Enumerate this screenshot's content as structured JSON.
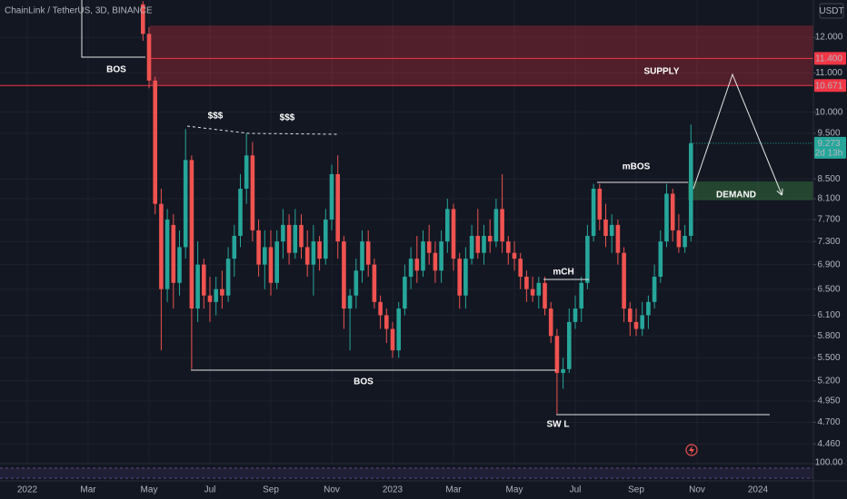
{
  "chart_data": {
    "type": "candlestick",
    "title": "ChainLink / TetherUS, 3D, BINANCE",
    "currency": "USDT",
    "countdown": "2d 13h",
    "indicator_label": "100.00",
    "log_scale": true,
    "grid": true,
    "up_color": "#26a69a",
    "down_color": "#ef5350",
    "ylim": [
      4.26,
      13.14
    ],
    "yticks": [
      {
        "value": 12,
        "label": "12.000"
      },
      {
        "value": 11,
        "label": "11.000"
      },
      {
        "value": 10,
        "label": "10.000"
      },
      {
        "value": 9.5,
        "label": "9.500"
      },
      {
        "value": 8.5,
        "label": "8.500"
      },
      {
        "value": 8.1,
        "label": "8.100"
      },
      {
        "value": 7.7,
        "label": "7.700"
      },
      {
        "value": 7.3,
        "label": "7.300"
      },
      {
        "value": 6.9,
        "label": "6.900"
      },
      {
        "value": 6.5,
        "label": "6.500"
      },
      {
        "value": 6.1,
        "label": "6.100"
      },
      {
        "value": 5.8,
        "label": "5.800"
      },
      {
        "value": 5.5,
        "label": "5.500"
      },
      {
        "value": 5.2,
        "label": "5.200"
      },
      {
        "value": 4.95,
        "label": "4.950"
      },
      {
        "value": 4.7,
        "label": "4.700"
      },
      {
        "value": 4.46,
        "label": "4.460"
      }
    ],
    "categories": [
      "2022",
      null,
      null,
      null,
      null,
      null,
      null,
      null,
      null,
      null,
      "Mar",
      null,
      null,
      null,
      null,
      null,
      null,
      null,
      null,
      null,
      "May",
      null,
      null,
      null,
      null,
      null,
      null,
      null,
      null,
      null,
      "Jul",
      null,
      null,
      null,
      null,
      null,
      null,
      null,
      null,
      null,
      "Sep",
      null,
      null,
      null,
      null,
      null,
      null,
      null,
      null,
      null,
      "Nov",
      null,
      null,
      null,
      null,
      null,
      null,
      null,
      null,
      null,
      "2023",
      null,
      null,
      null,
      null,
      null,
      null,
      null,
      null,
      null,
      "Mar",
      null,
      null,
      null,
      null,
      null,
      null,
      null,
      null,
      null,
      "May",
      null,
      null,
      null,
      null,
      null,
      null,
      null,
      null,
      null,
      "Jul",
      null,
      null,
      null,
      null,
      null,
      null,
      null,
      null,
      null,
      "Sep",
      null,
      null,
      null,
      null,
      null,
      null,
      null,
      null,
      null,
      "Nov",
      null,
      null,
      null,
      null,
      null,
      null,
      null,
      null,
      null,
      "2024"
    ],
    "open": [
      null,
      null,
      null,
      null,
      null,
      null,
      null,
      null,
      null,
      null,
      null,
      null,
      null,
      null,
      null,
      null,
      null,
      null,
      null,
      13.0,
      12.1,
      10.8,
      8.0,
      6.5,
      7.6,
      6.6,
      7.2,
      8.9,
      6.2,
      6.9,
      6.4,
      6.3,
      6.5,
      6.4,
      7.0,
      7.4,
      8.3,
      9.0,
      7.5,
      6.9,
      7.2,
      6.6,
      7.3,
      7.6,
      7.1,
      7.6,
      7.2,
      6.9,
      7.3,
      7.0,
      7.7,
      8.6,
      7.3,
      6.2,
      6.4,
      6.8,
      7.3,
      6.9,
      6.3,
      6.1,
      5.9,
      5.6,
      6.2,
      6.7,
      7.0,
      6.8,
      7.3,
      7.1,
      6.8,
      7.3,
      7.9,
      7.0,
      6.4,
      7.0,
      7.4,
      7.1,
      7.4,
      7.3,
      7.9,
      7.3,
      7.1,
      7.0,
      6.7,
      6.5,
      6.4,
      6.6,
      6.2,
      5.8,
      5.3,
      5.35,
      6.0,
      6.2,
      6.6,
      7.4,
      8.3,
      7.7,
      7.4,
      7.6,
      7.1,
      6.2,
      6.0,
      5.9,
      6.1,
      6.3,
      6.7,
      7.3,
      8.2,
      7.5,
      7.2,
      7.4,
      null,
      null,
      null,
      null,
      null,
      null,
      null,
      null,
      null,
      null,
      null
    ],
    "high": [
      null,
      null,
      null,
      null,
      null,
      null,
      null,
      null,
      null,
      null,
      null,
      null,
      null,
      null,
      null,
      null,
      null,
      null,
      null,
      13.1,
      12.3,
      10.9,
      8.3,
      7.9,
      7.8,
      7.5,
      9.6,
      9.0,
      7.3,
      7.0,
      6.7,
      6.7,
      6.8,
      7.2,
      7.6,
      8.6,
      9.5,
      9.3,
      7.7,
      7.5,
      7.5,
      7.5,
      7.9,
      7.8,
      7.9,
      7.8,
      7.5,
      7.6,
      7.4,
      7.9,
      8.8,
      9.0,
      7.4,
      6.5,
      7.0,
      7.5,
      7.5,
      7.0,
      6.4,
      6.2,
      6.0,
      6.3,
      6.9,
      7.2,
      7.4,
      7.5,
      7.6,
      7.3,
      7.5,
      8.1,
      8.0,
      7.1,
      7.2,
      7.6,
      7.9,
      7.6,
      7.7,
      8.1,
      8.6,
      7.4,
      7.3,
      7.1,
      6.8,
      6.7,
      6.7,
      6.7,
      6.3,
      5.9,
      5.5,
      6.2,
      6.4,
      6.7,
      7.6,
      8.4,
      8.4,
      8.0,
      7.8,
      7.7,
      7.2,
      6.3,
      6.2,
      6.3,
      6.4,
      6.9,
      7.5,
      8.4,
      8.3,
      7.8,
      7.6,
      9.7,
      null,
      null,
      null,
      null,
      null,
      null,
      null,
      null,
      null,
      null,
      null
    ],
    "low": [
      null,
      null,
      null,
      null,
      null,
      null,
      null,
      null,
      null,
      null,
      null,
      null,
      null,
      null,
      null,
      null,
      null,
      null,
      null,
      11.9,
      10.6,
      7.8,
      5.6,
      6.3,
      6.2,
      6.4,
      7.0,
      5.35,
      6.0,
      6.2,
      6.0,
      6.1,
      6.2,
      6.3,
      6.7,
      7.2,
      8.0,
      7.3,
      6.7,
      6.5,
      6.4,
      6.5,
      7.0,
      6.9,
      7.0,
      7.0,
      6.7,
      6.4,
      6.8,
      6.9,
      7.5,
      7.0,
      5.9,
      5.6,
      6.2,
      6.6,
      6.7,
      6.2,
      5.9,
      5.7,
      5.5,
      5.5,
      6.1,
      6.5,
      6.6,
      6.7,
      6.9,
      6.6,
      6.6,
      7.1,
      6.8,
      6.2,
      6.2,
      6.9,
      7.0,
      6.9,
      7.1,
      7.2,
      7.1,
      6.9,
      6.8,
      6.5,
      6.3,
      6.3,
      6.2,
      6.1,
      5.7,
      4.8,
      5.1,
      5.3,
      5.9,
      6.0,
      6.5,
      7.3,
      7.5,
      7.2,
      7.1,
      6.9,
      6.0,
      5.8,
      5.8,
      5.8,
      5.9,
      6.2,
      6.6,
      7.2,
      7.3,
      7.1,
      7.1,
      7.3,
      null,
      null,
      null,
      null,
      null,
      null,
      null,
      null,
      null,
      null,
      null
    ],
    "close": [
      null,
      null,
      null,
      null,
      null,
      null,
      null,
      null,
      null,
      null,
      null,
      null,
      null,
      null,
      null,
      null,
      null,
      null,
      null,
      12.1,
      10.8,
      8.0,
      6.5,
      7.7,
      6.6,
      7.2,
      8.9,
      6.2,
      6.9,
      6.4,
      6.3,
      6.5,
      6.4,
      7.0,
      7.4,
      8.3,
      9.0,
      7.5,
      6.9,
      7.2,
      6.6,
      7.3,
      7.6,
      7.1,
      7.6,
      7.2,
      6.9,
      7.3,
      7.0,
      7.7,
      8.6,
      7.3,
      6.2,
      6.4,
      6.8,
      7.3,
      6.9,
      6.3,
      6.1,
      5.9,
      5.6,
      6.2,
      6.7,
      7.0,
      6.8,
      7.3,
      7.1,
      6.8,
      7.3,
      7.9,
      7.0,
      6.4,
      7.0,
      7.4,
      7.1,
      7.4,
      7.3,
      7.9,
      7.3,
      7.1,
      7.0,
      6.7,
      6.5,
      6.4,
      6.6,
      6.2,
      5.8,
      5.3,
      5.35,
      6.0,
      6.2,
      6.6,
      7.4,
      8.3,
      7.7,
      7.4,
      7.6,
      7.1,
      6.2,
      6.0,
      5.9,
      6.1,
      6.3,
      6.7,
      7.3,
      8.2,
      7.5,
      7.2,
      7.4,
      9.273,
      null,
      null,
      null,
      null,
      null,
      null,
      null,
      null,
      null,
      null,
      null
    ],
    "supply": {
      "label": "SUPPLY",
      "top": 12.35,
      "mid": {
        "value": 11.4,
        "label": "11.400"
      },
      "bottom": 10.671,
      "color": "#f23645"
    },
    "demand": {
      "label": "DEMAND",
      "top": 8.45,
      "bottom": 8.07,
      "color": "#4caf50"
    },
    "annotations": [
      "BOS",
      "$$$",
      "$$$",
      "mBOS",
      "mCH",
      "BOS",
      "SW L"
    ]
  }
}
